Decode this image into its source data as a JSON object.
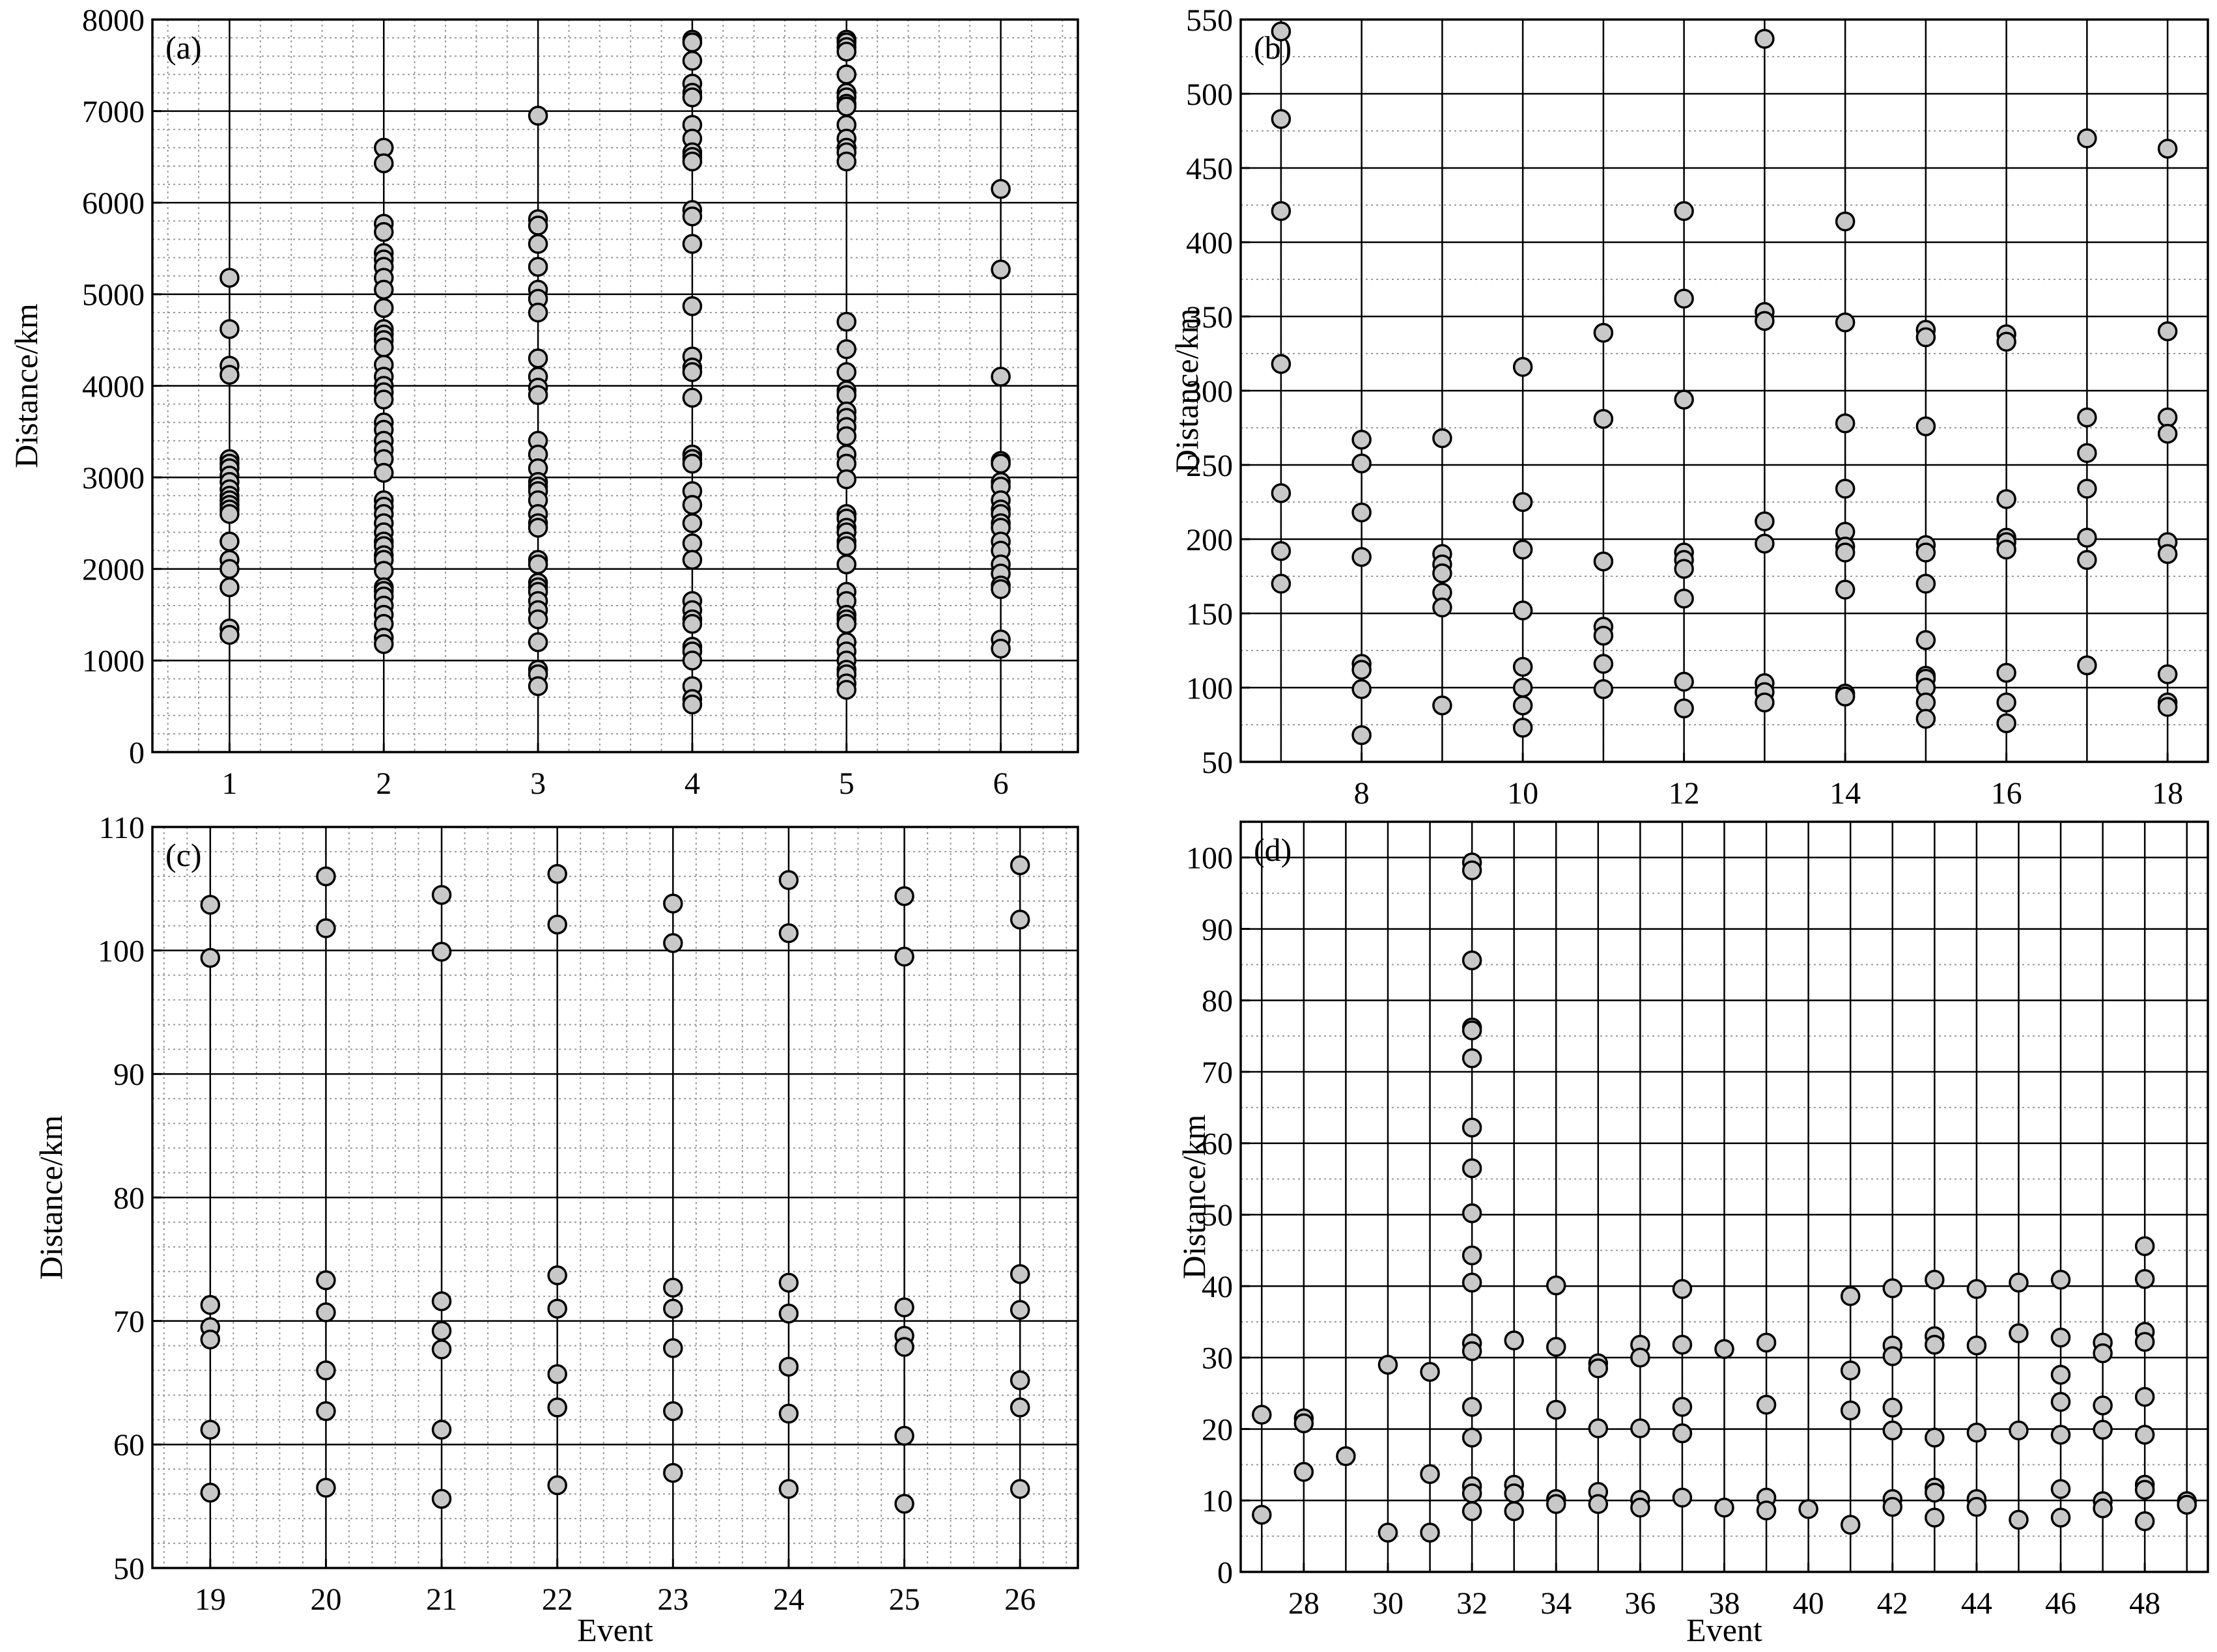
{
  "figure": {
    "background": "#ffffff",
    "marker_fill": "#c8c8c8",
    "marker_stroke": "#000000"
  },
  "chart_data": [
    {
      "panel_label": "(a)",
      "type": "scatter",
      "xlabel": "",
      "ylabel": "Distance/km",
      "xlim": [
        0.5,
        6.5
      ],
      "ylim": [
        0,
        8000
      ],
      "xticks": [
        1,
        2,
        3,
        4,
        5,
        6
      ],
      "yticks": [
        0,
        1000,
        2000,
        3000,
        4000,
        5000,
        6000,
        7000,
        8000
      ],
      "grid": true,
      "minor_grid_divisions": 5,
      "points": [
        {
          "x": 1,
          "values": [
            5180,
            4620,
            4220,
            4120,
            3200,
            3150,
            3100,
            3020,
            2950,
            2870,
            2800,
            2750,
            2700,
            2650,
            2600,
            2300,
            2100,
            2000,
            1800,
            1350,
            1280
          ]
        },
        {
          "x": 2,
          "values": [
            6600,
            6430,
            5770,
            5680,
            5450,
            5380,
            5300,
            5180,
            5050,
            4850,
            4620,
            4560,
            4500,
            4420,
            4230,
            4100,
            4000,
            3930,
            3850,
            3600,
            3520,
            3400,
            3300,
            3200,
            3050,
            2750,
            2680,
            2600,
            2500,
            2400,
            2300,
            2250,
            2150,
            2100,
            1980,
            1800,
            1760,
            1700,
            1600,
            1500,
            1400,
            1250,
            1180
          ]
        },
        {
          "x": 3,
          "values": [
            6950,
            5820,
            5750,
            5550,
            5300,
            5050,
            4950,
            4800,
            4300,
            4100,
            3980,
            3900,
            3400,
            3250,
            3100,
            2950,
            2900,
            2850,
            2750,
            2600,
            2500,
            2450,
            2100,
            2050,
            1850,
            1800,
            1750,
            1650,
            1550,
            1450,
            1200,
            900,
            850,
            720
          ]
        },
        {
          "x": 4,
          "values": [
            7780,
            7750,
            7550,
            7300,
            7200,
            7150,
            6850,
            6700,
            6550,
            6500,
            6450,
            5920,
            5850,
            5550,
            4870,
            4320,
            4200,
            4150,
            3870,
            3250,
            3200,
            3150,
            2850,
            2700,
            2500,
            2280,
            2100,
            1650,
            1550,
            1450,
            1400,
            1150,
            1100,
            1000,
            720,
            580,
            520
          ]
        },
        {
          "x": 5,
          "values": [
            7780,
            7750,
            7700,
            7650,
            7400,
            7200,
            7150,
            7080,
            7050,
            6850,
            6700,
            6600,
            6550,
            6450,
            4700,
            4400,
            4150,
            3950,
            3900,
            3720,
            3650,
            3550,
            3450,
            3250,
            3150,
            2980,
            2600,
            2550,
            2450,
            2400,
            2300,
            2250,
            2050,
            1750,
            1650,
            1500,
            1450,
            1400,
            1200,
            1100,
            1000,
            900,
            850,
            750,
            680
          ]
        },
        {
          "x": 6,
          "values": [
            6150,
            5270,
            4100,
            3180,
            3150,
            2950,
            2900,
            2750,
            2650,
            2600,
            2500,
            2450,
            2300,
            2200,
            2050,
            1950,
            1820,
            1780,
            1230,
            1130
          ]
        }
      ]
    },
    {
      "panel_label": "(b)",
      "type": "scatter",
      "xlabel": "",
      "ylabel": "Distance/km",
      "xlim": [
        6.5,
        18.5
      ],
      "ylim": [
        50,
        550
      ],
      "xticks": [
        8,
        10,
        12,
        14,
        16,
        18
      ],
      "yticks": [
        50,
        100,
        150,
        200,
        250,
        300,
        350,
        400,
        450,
        500,
        550
      ],
      "grid": true,
      "minor_grid_divisions": 2,
      "points": [
        {
          "x": 7,
          "values": [
            542,
            483,
            421,
            318,
            231,
            192,
            170
          ]
        },
        {
          "x": 8,
          "values": [
            267,
            251,
            218,
            188,
            116,
            112,
            99,
            68
          ]
        },
        {
          "x": 9,
          "values": [
            268,
            190,
            183,
            177,
            164,
            154,
            88
          ]
        },
        {
          "x": 10,
          "values": [
            316,
            225,
            193,
            152,
            114,
            100,
            88,
            73
          ]
        },
        {
          "x": 11,
          "values": [
            339,
            281,
            185,
            141,
            135,
            116,
            99
          ]
        },
        {
          "x": 12,
          "values": [
            421,
            362,
            294,
            191,
            186,
            180,
            160,
            104,
            86
          ]
        },
        {
          "x": 13,
          "values": [
            537,
            353,
            347,
            212,
            197,
            103,
            97,
            90
          ]
        },
        {
          "x": 14,
          "values": [
            414,
            346,
            278,
            234,
            205,
            195,
            191,
            166,
            96,
            94
          ]
        },
        {
          "x": 15,
          "values": [
            341,
            336,
            276,
            196,
            191,
            170,
            132,
            108,
            106,
            100,
            90,
            79
          ]
        },
        {
          "x": 16,
          "values": [
            338,
            333,
            227,
            201,
            198,
            193,
            110,
            90,
            76
          ]
        },
        {
          "x": 17,
          "values": [
            470,
            282,
            258,
            234,
            201,
            186,
            115
          ]
        },
        {
          "x": 18,
          "values": [
            463,
            340,
            282,
            271,
            198,
            190,
            109,
            90,
            87
          ]
        }
      ]
    },
    {
      "panel_label": "(c)",
      "type": "scatter",
      "xlabel": "Event",
      "ylabel": "Distance/km",
      "xlim": [
        18.5,
        26.5
      ],
      "ylim": [
        50,
        110
      ],
      "xticks": [
        19,
        20,
        21,
        22,
        23,
        24,
        25,
        26
      ],
      "yticks": [
        50,
        60,
        70,
        80,
        90,
        100,
        110
      ],
      "grid": true,
      "minor_grid_divisions": 5,
      "points": [
        {
          "x": 19,
          "values": [
            103.7,
            99.4,
            71.3,
            69.5,
            68.5,
            61.2,
            56.1
          ]
        },
        {
          "x": 20,
          "values": [
            106.0,
            101.8,
            73.3,
            70.7,
            66.0,
            62.7,
            56.5
          ]
        },
        {
          "x": 21,
          "values": [
            104.5,
            99.9,
            71.6,
            69.2,
            67.7,
            61.2,
            55.6
          ]
        },
        {
          "x": 22,
          "values": [
            106.2,
            102.1,
            73.7,
            71.0,
            65.7,
            63.0,
            56.7
          ]
        },
        {
          "x": 23,
          "values": [
            103.8,
            100.6,
            72.7,
            71.0,
            67.8,
            62.7,
            57.7
          ]
        },
        {
          "x": 24,
          "values": [
            105.7,
            101.4,
            73.1,
            70.6,
            66.3,
            62.5,
            56.4
          ]
        },
        {
          "x": 25,
          "values": [
            104.4,
            99.5,
            71.1,
            68.8,
            67.9,
            60.7,
            55.2
          ]
        },
        {
          "x": 26,
          "values": [
            106.9,
            102.5,
            73.8,
            70.9,
            65.2,
            63.0,
            56.4
          ]
        }
      ]
    },
    {
      "panel_label": "(d)",
      "type": "scatter",
      "xlabel": "Event",
      "ylabel": "Distance/km",
      "xlim": [
        26.5,
        49.5
      ],
      "ylim": [
        0,
        105
      ],
      "xticks": [
        28,
        30,
        32,
        34,
        36,
        38,
        40,
        42,
        44,
        46,
        48
      ],
      "yticks": [
        0,
        10,
        20,
        30,
        40,
        50,
        60,
        70,
        80,
        90,
        100
      ],
      "grid": true,
      "minor_grid_divisions": 2,
      "points": [
        {
          "x": 27,
          "values": [
            22.0,
            8.0
          ]
        },
        {
          "x": 28,
          "values": [
            21.5,
            20.8,
            14.0
          ]
        },
        {
          "x": 29,
          "values": [
            16.2
          ]
        },
        {
          "x": 30,
          "values": [
            29.0,
            5.5
          ]
        },
        {
          "x": 31,
          "values": [
            28.0,
            13.7,
            5.5
          ]
        },
        {
          "x": 32,
          "values": [
            99.3,
            98.2,
            85.6,
            76.2,
            75.8,
            71.9,
            62.2,
            56.5,
            50.2,
            44.3,
            40.5,
            32.0,
            30.9,
            23.1,
            18.8,
            12.0,
            11.0,
            8.5
          ]
        },
        {
          "x": 33,
          "values": [
            32.4,
            12.2,
            11.0,
            8.5
          ]
        },
        {
          "x": 34,
          "values": [
            40.1,
            31.5,
            22.7,
            10.2,
            9.5
          ]
        },
        {
          "x": 35,
          "values": [
            29.2,
            28.5,
            20.1,
            11.2,
            9.5
          ]
        },
        {
          "x": 36,
          "values": [
            31.8,
            30.0,
            20.1,
            10.1,
            9.0
          ]
        },
        {
          "x": 37,
          "values": [
            39.6,
            31.8,
            23.1,
            19.4,
            10.4
          ]
        },
        {
          "x": 38,
          "values": [
            31.2,
            9.0
          ]
        },
        {
          "x": 39,
          "values": [
            32.1,
            23.4,
            10.4,
            8.6
          ]
        },
        {
          "x": 40,
          "values": [
            8.8
          ]
        },
        {
          "x": 41,
          "values": [
            38.6,
            28.2,
            22.6,
            6.6
          ]
        },
        {
          "x": 42,
          "values": [
            39.7,
            31.7,
            30.2,
            23.0,
            19.8,
            10.2,
            9.1
          ]
        },
        {
          "x": 43,
          "values": [
            40.9,
            33.0,
            31.8,
            18.8,
            11.8,
            11.1,
            7.6
          ]
        },
        {
          "x": 44,
          "values": [
            39.6,
            31.7,
            19.5,
            10.2,
            9.1
          ]
        },
        {
          "x": 45,
          "values": [
            40.5,
            33.4,
            19.8,
            7.3
          ]
        },
        {
          "x": 46,
          "values": [
            40.9,
            32.8,
            27.6,
            23.8,
            19.2,
            11.6,
            7.6
          ]
        },
        {
          "x": 47,
          "values": [
            32.1,
            30.6,
            23.3,
            19.9,
            9.9,
            8.9
          ]
        },
        {
          "x": 48,
          "values": [
            45.6,
            41.0,
            33.6,
            32.2,
            24.5,
            19.2,
            12.2,
            11.5,
            7.1
          ]
        },
        {
          "x": 49,
          "values": [
            9.9,
            9.4
          ]
        }
      ]
    }
  ]
}
